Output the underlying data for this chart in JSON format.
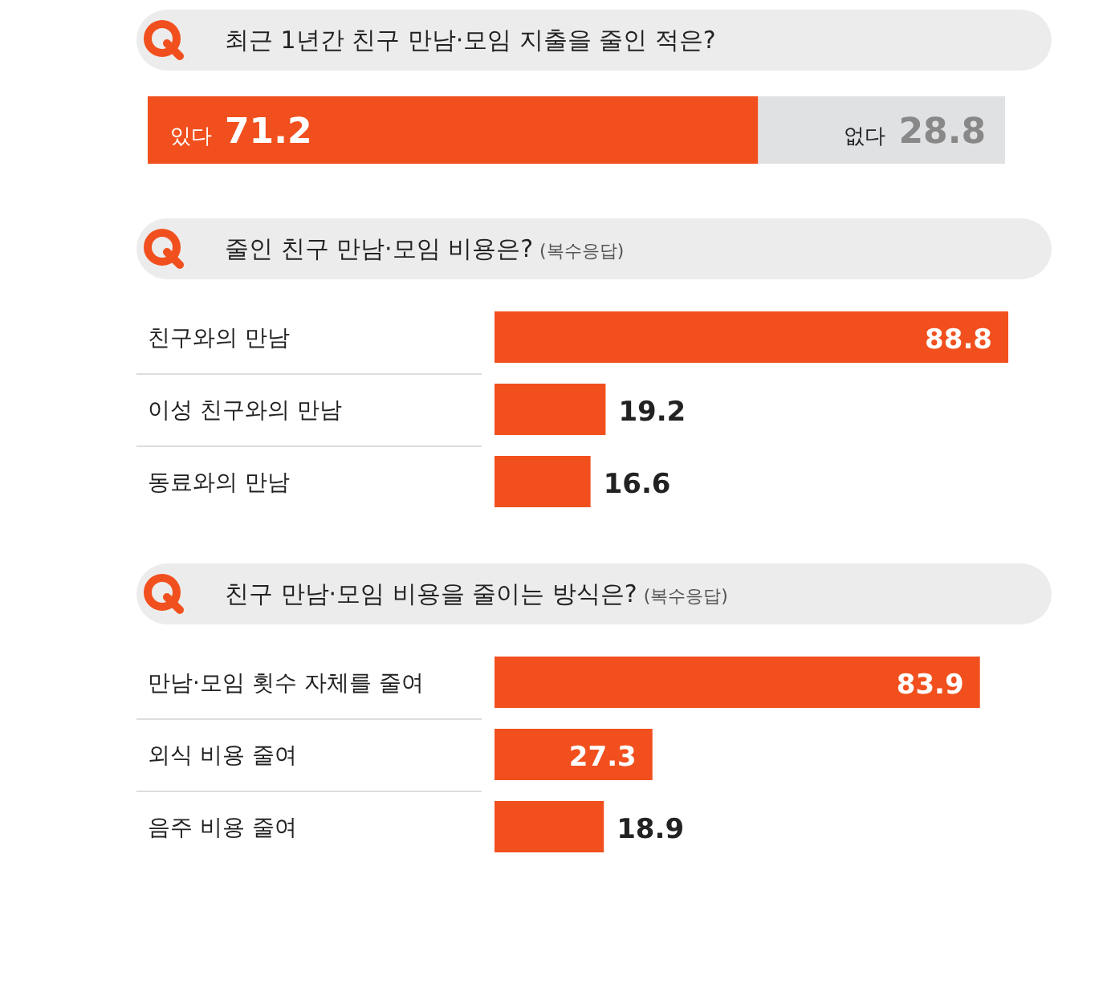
{
  "chart_data": [
    {
      "type": "bar",
      "orientation": "horizontal",
      "stacked": true,
      "title": "최근 1년간 친구 만남·모임 지출을 줄인 적은?",
      "categories": [
        null
      ],
      "data_labels": true,
      "series": [
        {
          "name": "있다",
          "color": "#f1501e",
          "values": [
            71.2
          ]
        },
        {
          "name": "없다",
          "color": "#dfe1e3",
          "values": [
            28.8
          ]
        }
      ]
    },
    {
      "type": "bar",
      "orientation": "horizontal",
      "title": "줄인 친구 만남·모임 비용은?",
      "subtitle": "(복수응답)",
      "categories": [
        "친구와의 만남",
        "이성 친구와의 만남",
        "동료와의 만남"
      ],
      "values": [
        88.8,
        19.2,
        16.6
      ],
      "color": "#f1501e",
      "data_labels": true
    },
    {
      "type": "bar",
      "orientation": "horizontal",
      "title": "친구 만남·모임 비용을 줄이는 방식은?",
      "subtitle": "(복수응답)",
      "categories": [
        "만남·모임 횟수 자체를 줄여",
        "외식 비용 줄여",
        "음주 비용 줄여"
      ],
      "values": [
        83.9,
        27.3,
        18.9
      ],
      "color": "#f1501e",
      "data_labels": true
    }
  ]
}
